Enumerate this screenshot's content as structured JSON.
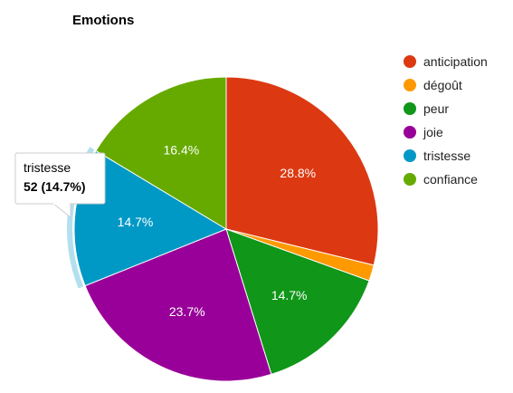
{
  "chart_data": {
    "type": "pie",
    "title": "Emotions",
    "slices": [
      {
        "label": "anticipation",
        "value": 102,
        "percent_label": "28.8%",
        "color": "#dc3912"
      },
      {
        "label": "dégoût",
        "value": 6,
        "percent_label": "",
        "color": "#ff9900"
      },
      {
        "label": "peur",
        "value": 52,
        "percent_label": "14.7%",
        "color": "#109618"
      },
      {
        "label": "joie",
        "value": 84,
        "percent_label": "23.7%",
        "color": "#990099"
      },
      {
        "label": "tristesse",
        "value": 52,
        "percent_label": "14.7%",
        "color": "#0099c6"
      },
      {
        "label": "confiance",
        "value": 58,
        "percent_label": "16.4%",
        "color": "#66aa00"
      }
    ],
    "legend_position": "right",
    "highlighted_slice": "tristesse",
    "tooltip": {
      "label": "tristesse",
      "value_text": "52 (14.7%)"
    }
  }
}
